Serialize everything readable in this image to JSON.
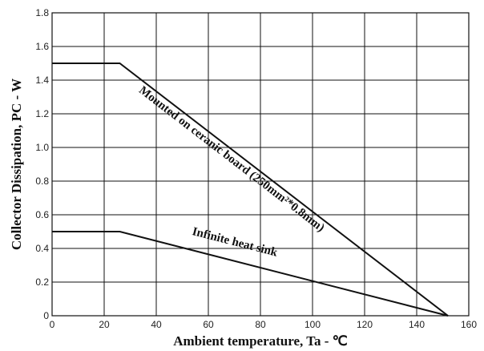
{
  "chart_data": {
    "type": "line",
    "xlabel": "Ambient temperature,  Ta  - ℃",
    "ylabel": "Collector Dissipation,  PC  -  W",
    "xlim": [
      0,
      160
    ],
    "ylim": [
      0,
      1.8
    ],
    "x_ticks": [
      "0",
      "20",
      "40",
      "60",
      "80",
      "100",
      "120",
      "140",
      "160"
    ],
    "y_ticks": [
      "0",
      "0.2",
      "0.4",
      "0.6",
      "0.8",
      "1.0",
      "1.2",
      "1.4",
      "1.6",
      "1.8"
    ],
    "grid": true,
    "series": [
      {
        "name": "Mounted on ceranic board (250mm²*0.8mm)",
        "x": [
          0,
          26,
          152
        ],
        "y": [
          1.5,
          1.5,
          0
        ]
      },
      {
        "name": "Infinite heat sink",
        "x": [
          0,
          26,
          152
        ],
        "y": [
          0.5,
          0.5,
          0
        ]
      }
    ]
  }
}
